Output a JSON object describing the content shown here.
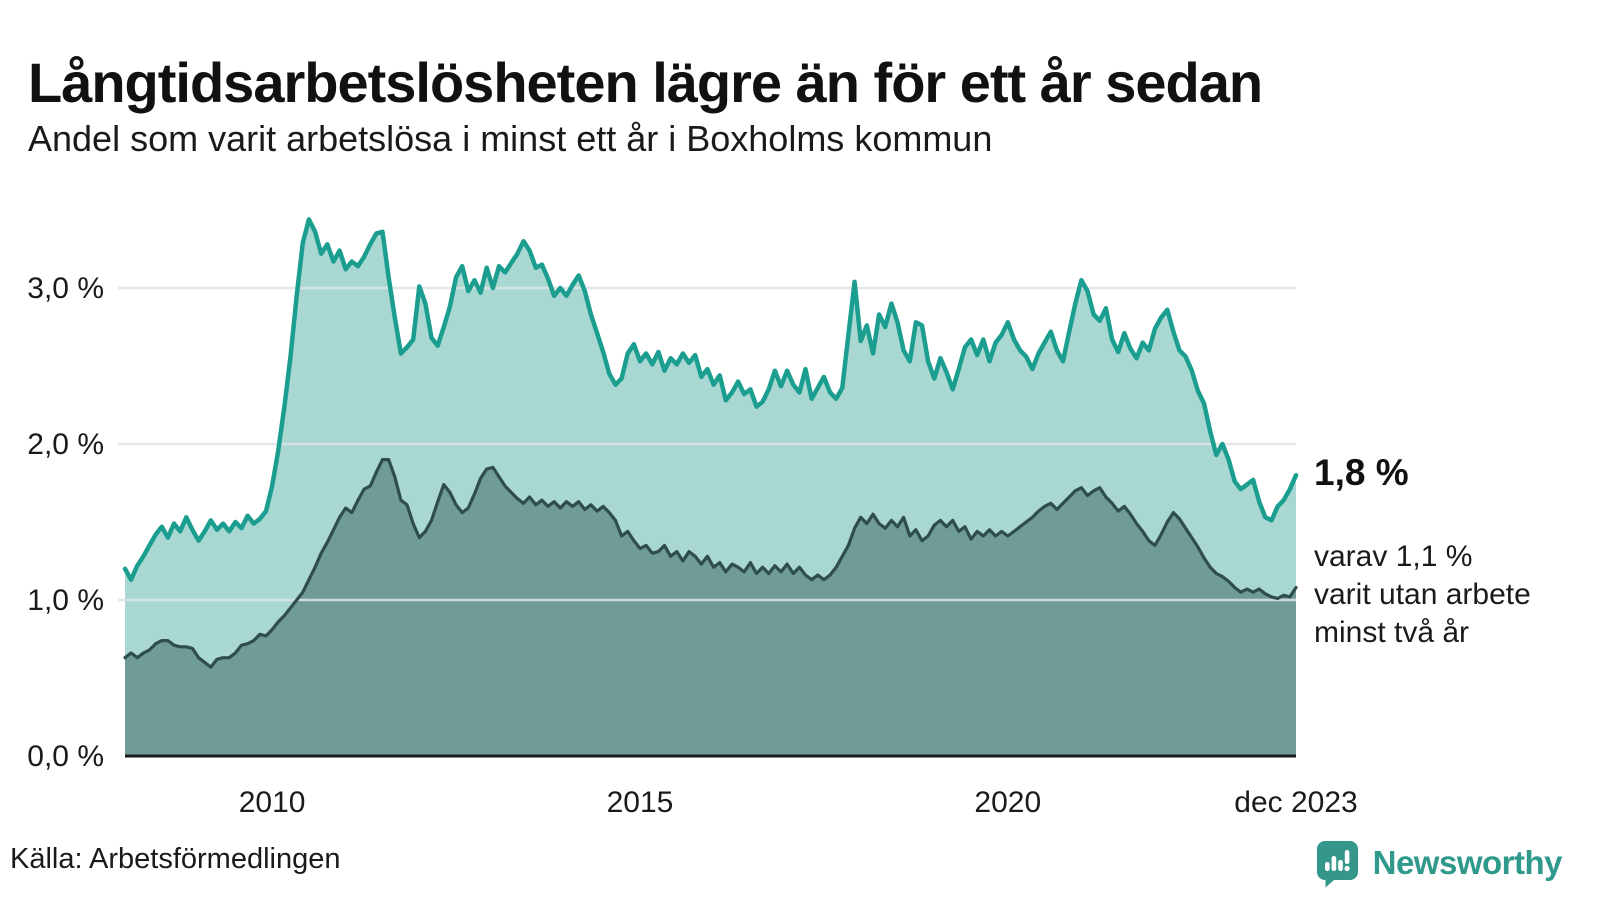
{
  "header": {
    "title": "Långtidsarbetslösheten lägre än för ett år sedan",
    "subtitle": "Andel som varit arbetslösa i minst ett år i Boxholms kommun"
  },
  "annotation": {
    "primary": "1,8 %",
    "secondary_lines": [
      "varav 1,1 %",
      "varit utan arbete",
      "minst två år"
    ]
  },
  "footer": {
    "source": "Källa: Arbetsförmedlingen",
    "brand": "Newsworthy"
  },
  "colors": {
    "series1_line": "#1b9e90",
    "series1_fill": "#a9d8d2",
    "series2_line": "#2f4d49",
    "series2_fill": "#6f9c96",
    "gridline": "#dfe3e4",
    "baseline": "#1a1a1a",
    "text": "#1a1a1a",
    "brand_teal": "#35968a"
  },
  "chart_data": {
    "type": "area",
    "title": "Långtidsarbetslösheten lägre än för ett år sedan",
    "subtitle": "Andel som varit arbetslösa i minst ett år i Boxholms kommun",
    "unit": "%",
    "frequency": "monthly",
    "x_start": 2008.0,
    "x_end": 2023.9167,
    "ylim": [
      0,
      3.6
    ],
    "grid": true,
    "legend_position": "none",
    "yticks": [
      {
        "value": 0.0,
        "label": "0,0 %"
      },
      {
        "value": 1.0,
        "label": "1,0 %"
      },
      {
        "value": 2.0,
        "label": "2,0 %"
      },
      {
        "value": 3.0,
        "label": "3,0 %"
      }
    ],
    "xticks": [
      {
        "t": 2010.0,
        "label": "2010"
      },
      {
        "t": 2015.0,
        "label": "2015"
      },
      {
        "t": 2020.0,
        "label": "2020"
      },
      {
        "t": 2023.9167,
        "label": "dec 2023"
      }
    ],
    "series": [
      {
        "name": "Arbetslösa minst ett år",
        "latest_label": "1,8 %",
        "latest_value": 1.8,
        "values": [
          1.2,
          1.13,
          1.22,
          1.28,
          1.35,
          1.42,
          1.47,
          1.4,
          1.49,
          1.44,
          1.53,
          1.45,
          1.38,
          1.44,
          1.51,
          1.45,
          1.49,
          1.44,
          1.5,
          1.46,
          1.54,
          1.49,
          1.52,
          1.57,
          1.73,
          1.96,
          2.24,
          2.56,
          2.95,
          3.29,
          3.44,
          3.36,
          3.22,
          3.28,
          3.17,
          3.24,
          3.12,
          3.17,
          3.14,
          3.2,
          3.28,
          3.35,
          3.36,
          3.07,
          2.81,
          2.58,
          2.62,
          2.67,
          3.01,
          2.9,
          2.68,
          2.63,
          2.75,
          2.88,
          3.07,
          3.14,
          2.98,
          3.05,
          2.97,
          3.13,
          3.0,
          3.14,
          3.1,
          3.16,
          3.22,
          3.3,
          3.24,
          3.13,
          3.15,
          3.06,
          2.95,
          3.0,
          2.95,
          3.02,
          3.08,
          2.98,
          2.83,
          2.71,
          2.59,
          2.45,
          2.38,
          2.42,
          2.58,
          2.64,
          2.53,
          2.58,
          2.51,
          2.59,
          2.47,
          2.55,
          2.51,
          2.58,
          2.52,
          2.57,
          2.43,
          2.48,
          2.38,
          2.44,
          2.28,
          2.33,
          2.4,
          2.32,
          2.35,
          2.24,
          2.27,
          2.35,
          2.47,
          2.37,
          2.47,
          2.38,
          2.33,
          2.48,
          2.29,
          2.36,
          2.43,
          2.33,
          2.29,
          2.36,
          2.7,
          3.04,
          2.66,
          2.76,
          2.58,
          2.83,
          2.75,
          2.9,
          2.78,
          2.6,
          2.53,
          2.78,
          2.76,
          2.53,
          2.42,
          2.55,
          2.46,
          2.35,
          2.48,
          2.62,
          2.67,
          2.57,
          2.67,
          2.53,
          2.65,
          2.7,
          2.78,
          2.67,
          2.6,
          2.56,
          2.48,
          2.58,
          2.65,
          2.72,
          2.6,
          2.53,
          2.72,
          2.9,
          3.05,
          2.98,
          2.83,
          2.79,
          2.87,
          2.67,
          2.59,
          2.71,
          2.61,
          2.55,
          2.65,
          2.6,
          2.74,
          2.81,
          2.86,
          2.72,
          2.6,
          2.56,
          2.47,
          2.34,
          2.26,
          2.08,
          1.93,
          2.0,
          1.9,
          1.76,
          1.71,
          1.74,
          1.77,
          1.63,
          1.53,
          1.51,
          1.6,
          1.64,
          1.71,
          1.8
        ]
      },
      {
        "name": "Arbetslösa minst två år",
        "latest_label": "1,1 %",
        "latest_value": 1.1,
        "values": [
          0.63,
          0.66,
          0.63,
          0.66,
          0.68,
          0.72,
          0.74,
          0.74,
          0.71,
          0.7,
          0.7,
          0.69,
          0.63,
          0.6,
          0.57,
          0.62,
          0.63,
          0.63,
          0.66,
          0.71,
          0.72,
          0.74,
          0.78,
          0.77,
          0.81,
          0.86,
          0.9,
          0.95,
          1.0,
          1.05,
          1.13,
          1.21,
          1.3,
          1.37,
          1.45,
          1.53,
          1.59,
          1.56,
          1.64,
          1.71,
          1.73,
          1.82,
          1.9,
          1.9,
          1.79,
          1.64,
          1.61,
          1.49,
          1.4,
          1.44,
          1.51,
          1.63,
          1.74,
          1.69,
          1.61,
          1.56,
          1.59,
          1.68,
          1.78,
          1.84,
          1.85,
          1.79,
          1.73,
          1.69,
          1.65,
          1.62,
          1.66,
          1.61,
          1.64,
          1.6,
          1.63,
          1.59,
          1.63,
          1.6,
          1.63,
          1.58,
          1.61,
          1.57,
          1.6,
          1.56,
          1.51,
          1.41,
          1.44,
          1.38,
          1.33,
          1.35,
          1.3,
          1.31,
          1.35,
          1.28,
          1.31,
          1.25,
          1.31,
          1.28,
          1.23,
          1.28,
          1.21,
          1.24,
          1.18,
          1.23,
          1.21,
          1.18,
          1.24,
          1.17,
          1.21,
          1.17,
          1.22,
          1.18,
          1.23,
          1.17,
          1.21,
          1.16,
          1.13,
          1.16,
          1.13,
          1.16,
          1.21,
          1.28,
          1.35,
          1.46,
          1.53,
          1.49,
          1.55,
          1.49,
          1.46,
          1.51,
          1.47,
          1.53,
          1.41,
          1.45,
          1.38,
          1.41,
          1.48,
          1.51,
          1.47,
          1.51,
          1.44,
          1.47,
          1.39,
          1.44,
          1.41,
          1.45,
          1.41,
          1.44,
          1.41,
          1.44,
          1.47,
          1.5,
          1.53,
          1.57,
          1.6,
          1.62,
          1.58,
          1.62,
          1.66,
          1.7,
          1.72,
          1.67,
          1.7,
          1.72,
          1.66,
          1.62,
          1.57,
          1.6,
          1.55,
          1.49,
          1.44,
          1.38,
          1.35,
          1.42,
          1.5,
          1.56,
          1.52,
          1.46,
          1.4,
          1.34,
          1.27,
          1.21,
          1.17,
          1.15,
          1.12,
          1.08,
          1.05,
          1.07,
          1.05,
          1.07,
          1.04,
          1.02,
          1.01,
          1.03,
          1.02,
          1.08
        ]
      }
    ]
  }
}
